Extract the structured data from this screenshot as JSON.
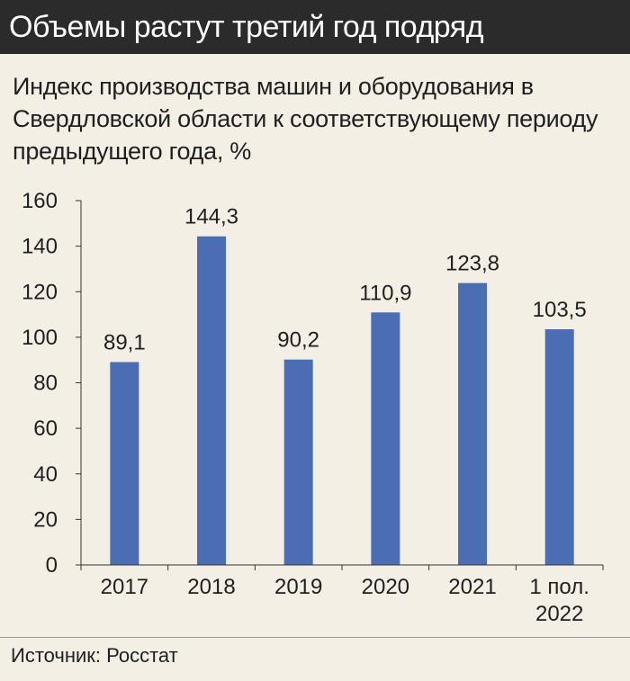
{
  "header": {
    "title": "Объемы растут третий год подряд"
  },
  "source": "Источник: Росстат",
  "chart_data": {
    "type": "bar",
    "title": "Индекс производства машин и оборудования в Свердловской области к соответствующему периоду предыдущего года, %",
    "categories": [
      "2017",
      "2018",
      "2019",
      "2020",
      "2021",
      "1 пол. 2022"
    ],
    "values": [
      89.1,
      144.3,
      90.2,
      110.9,
      123.8,
      103.5
    ],
    "value_labels": [
      "89,1",
      "144,3",
      "90,2",
      "110,9",
      "123,8",
      "103,5"
    ],
    "y_ticks": [
      0,
      20,
      40,
      60,
      80,
      100,
      120,
      140,
      160
    ],
    "ylim": [
      0,
      160
    ],
    "grid": false,
    "bar_color": "#4a6db3"
  }
}
